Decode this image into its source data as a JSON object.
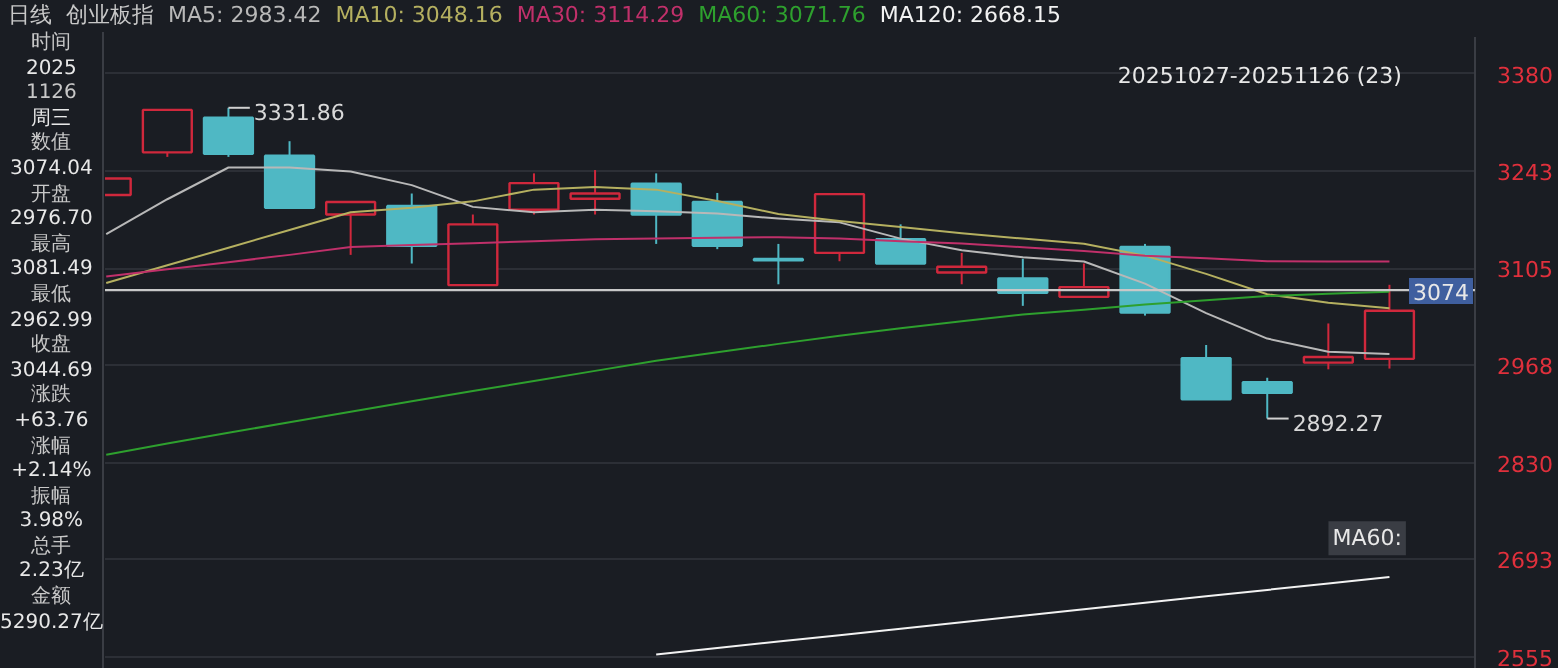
{
  "chart_data": {
    "type": "candlestick",
    "title": "日线",
    "subtitle": "创业板指",
    "categories": [
      null,
      null,
      null,
      null,
      null,
      null,
      null,
      null,
      null,
      null,
      null,
      null,
      null,
      null,
      null,
      null,
      null,
      null,
      null,
      null,
      null,
      null
    ],
    "ohlc": [
      [
        3208.6,
        3231.9,
        3208.6,
        3231.9
      ],
      [
        3268.8,
        3328.9,
        3262.4,
        3328.9
      ],
      [
        3317.8,
        3331.86,
        3262.4,
        3266.8
      ],
      [
        3264.1,
        3284.6,
        3190.3,
        3190.3
      ],
      [
        3180.9,
        3198.6,
        3123.8,
        3198.6
      ],
      [
        3193.1,
        3210.6,
        3111.6,
        3136.6
      ],
      [
        3081.0,
        3180.9,
        3081.0,
        3167.0
      ],
      [
        3187.6,
        3239.1,
        3180.9,
        3225.3
      ],
      [
        3203.1,
        3243.8,
        3180.9,
        3210.6
      ],
      [
        3224.4,
        3239.1,
        3139.3,
        3180.9
      ],
      [
        3198.6,
        3211.4,
        3131.9,
        3136.6
      ],
      [
        3118.0,
        3139.3,
        3082.2,
        3116.0
      ],
      [
        3126.6,
        3211.4,
        3114.8,
        3209.8
      ],
      [
        3146.0,
        3167.0,
        3111.6,
        3111.6
      ],
      [
        3098.8,
        3126.6,
        3082.2,
        3107.1
      ],
      [
        3090.5,
        3118.3,
        3051.7,
        3070.0
      ],
      [
        3064.4,
        3111.6,
        3064.4,
        3078.2
      ],
      [
        3134.9,
        3139.3,
        3037.9,
        3042.3
      ],
      [
        2977.7,
        2996.3,
        2919.5,
        2919.5
      ],
      [
        2943.6,
        2950.0,
        2892.27,
        2928.7
      ],
      [
        2971.4,
        3026.8,
        2961.9,
        2979.3
      ],
      [
        2976.7,
        3081.49,
        2962.99,
        3044.69
      ]
    ],
    "colors": [
      "#d0283c",
      "#d0283c",
      "#4fb8c4",
      "#4fb8c4",
      "#d0283c",
      "#4fb8c4",
      "#d0283c",
      "#d0283c",
      "#d0283c",
      "#4fb8c4",
      "#4fb8c4",
      "#4fb8c4",
      "#d0283c",
      "#4fb8c4",
      "#d0283c",
      "#4fb8c4",
      "#d0283c",
      "#4fb8c4",
      "#4fb8c4",
      "#4fb8c4",
      "#d0283c",
      "#d0283c"
    ],
    "series": [
      {
        "name": "MA5: 2983.42",
        "type": "line",
        "color": "#b8b8b8",
        "values": [
          3153.2,
          3202.5,
          3247.4,
          3247.4,
          3241.6,
          3222.5,
          3191.7,
          3184.0,
          3187.6,
          3185.6,
          3182.3,
          3175.1,
          3169.8,
          3146.8,
          3130.2,
          3120.5,
          3114.4,
          3083.1,
          3041.5,
          3005.4,
          2986.9,
          2983.42
        ]
      },
      {
        "name": "MA10: 3048.16",
        "type": "line",
        "color": "#b5b060",
        "values": [
          3083.9,
          3109.1,
          3134.0,
          3159.0,
          3184.0,
          3190.6,
          3199.5,
          3216.1,
          3219.7,
          3216.1,
          3200.0,
          3181.7,
          3171.8,
          3163.4,
          3154.3,
          3146.8,
          3139.6,
          3122.7,
          3096.9,
          3068.1,
          3056.2,
          3048.16
        ]
      },
      {
        "name": "MA30: 3114.29",
        "type": "line",
        "color": "#c0306a",
        "values": [
          3093.3,
          3103.6,
          3113.5,
          3123.8,
          3134.9,
          3137.7,
          3140.4,
          3143.2,
          3146.0,
          3147.1,
          3147.9,
          3148.8,
          3146.8,
          3143.2,
          3139.9,
          3134.6,
          3129.3,
          3122.7,
          3119.1,
          3114.7,
          3114.4,
          3114.29
        ]
      },
      {
        "name": "MA60: 3071.76",
        "type": "line",
        "color": "#2ea02e",
        "values": [
          2841.1,
          2857.1,
          2872.1,
          2887.1,
          2901.8,
          2916.7,
          2931.1,
          2945.3,
          2959.7,
          2974.1,
          2986.0,
          2997.9,
          3009.3,
          3020.1,
          3029.8,
          3039.5,
          3046.1,
          3053.7,
          3059.5,
          3065.6,
          3068.9,
          3071.76
        ]
      },
      {
        "name": "MA120: 2668.15",
        "type": "line",
        "color": "#f2f2f2",
        "values": [
          null,
          null,
          null,
          null,
          null,
          null,
          null,
          null,
          null,
          2558.5,
          2567.6,
          2576.8,
          2585.9,
          2595.1,
          2604.2,
          2613.3,
          2622.5,
          2631.6,
          2640.8,
          2649.9,
          2659.0,
          2668.15
        ]
      }
    ],
    "ylim": [
      2538,
      3432
    ],
    "yticks": [
      3380,
      3243,
      3105,
      2968,
      2830,
      2693,
      2555
    ],
    "grid": "y",
    "ref_lines": [
      {
        "axis": "y",
        "value": 3074,
        "label": "3074"
      }
    ],
    "annotations": [
      "20251027-20251126 (23)",
      "MA60:",
      "时间",
      "2025",
      "1126",
      "周三",
      "数值",
      "3074.04",
      "开盘",
      "2976.70",
      "最高",
      "3081.49",
      "最低",
      "2962.99",
      "收盘",
      "3044.69",
      "涨跌",
      "+63.76",
      "涨幅",
      "+2.14%",
      "振幅",
      "3.98%",
      "总手",
      "2.23亿",
      "金额",
      "5290.27亿",
      "3331.86",
      "2892.27"
    ]
  }
}
